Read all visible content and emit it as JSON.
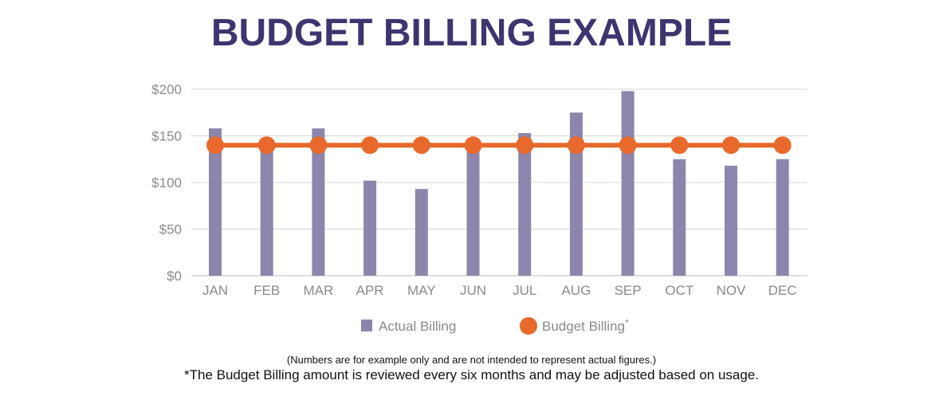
{
  "title": "BUDGET BILLING EXAMPLE",
  "chart_data": {
    "type": "bar",
    "categories": [
      "JAN",
      "FEB",
      "MAR",
      "APR",
      "MAY",
      "JUN",
      "JUL",
      "AUG",
      "SEP",
      "OCT",
      "NOV",
      "DEC"
    ],
    "series": [
      {
        "name": "Actual Billing",
        "type": "bar",
        "color": "#8e85ac",
        "values": [
          158,
          140,
          158,
          102,
          93,
          140,
          153,
          175,
          198,
          125,
          118,
          125
        ]
      },
      {
        "name": "Budget Billing*",
        "type": "line",
        "color": "#e8692b",
        "values": [
          140,
          140,
          140,
          140,
          140,
          140,
          140,
          140,
          140,
          140,
          140,
          140
        ]
      }
    ],
    "y_ticks": [
      "$0",
      "$50",
      "$100",
      "$150",
      "$200"
    ],
    "ylim": [
      0,
      200
    ],
    "grid": true,
    "legend_position": "bottom"
  },
  "legend": {
    "actual_label": "Actual Billing",
    "budget_label": "Budget Billing",
    "budget_marker": "*"
  },
  "notes": {
    "disclaimer": "(Numbers are for example only and are not intended to represent actual figures.)",
    "footnote": "*The Budget Billing amount is reviewed every six months and may be adjusted based on usage."
  }
}
